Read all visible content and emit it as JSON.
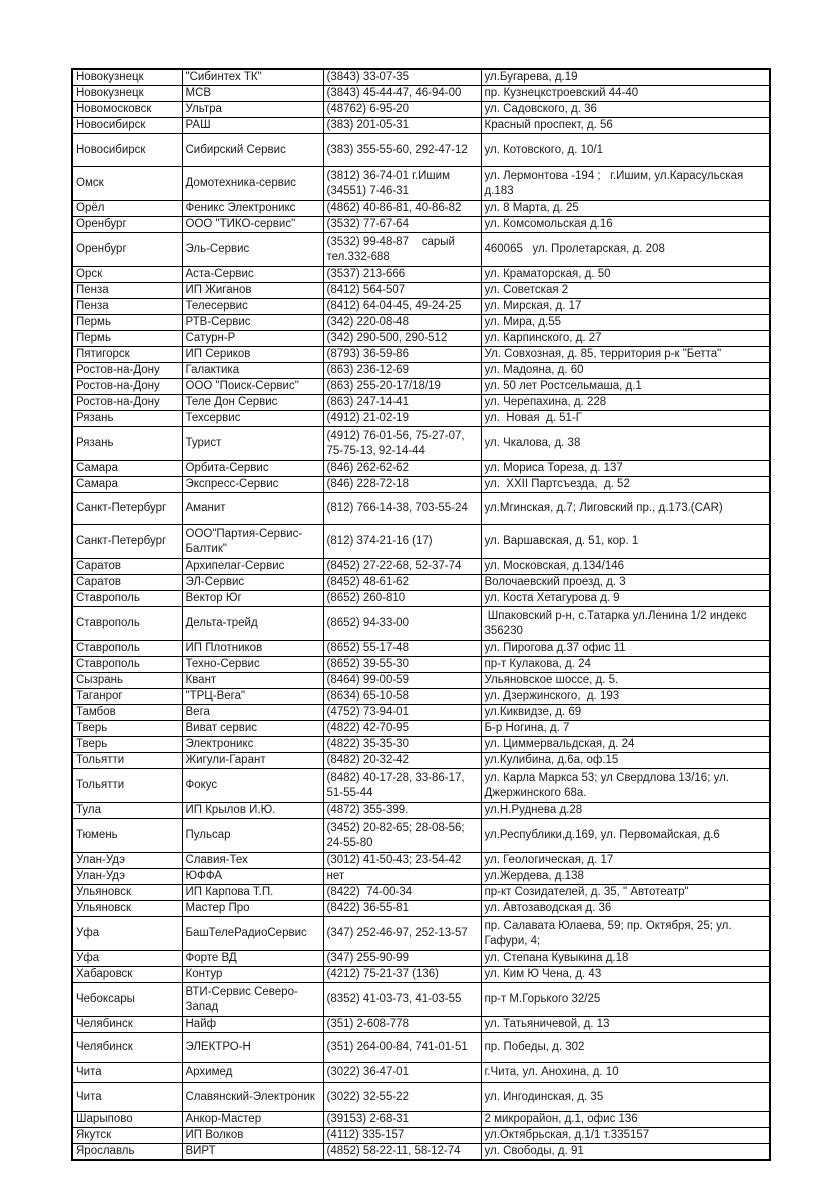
{
  "document": {
    "type": "service-centers-table-page",
    "table": {
      "columns": [
        "city",
        "name",
        "phone",
        "address"
      ],
      "rows": [
        {
          "city": "Новокузнецк",
          "name": "\"Сибинтех ТК\"",
          "phone": "(3843) 33-07-35",
          "address": "ул.Бугарева, д.19"
        },
        {
          "city": "Новокузнецк",
          "name": "МСВ",
          "phone": "(3843) 45-44-47, 46-94-00",
          "address": "пр. Кузнецкстроевский 44-40"
        },
        {
          "city": "Новомосковск",
          "name": "Ультра",
          "phone": "(48762) 6-95-20",
          "address": "ул. Садовского, д. 36"
        },
        {
          "city": "Новосибирск",
          "name": "РАШ",
          "phone": "(383) 201-05-31",
          "address": "Красный проспект, д. 56"
        },
        {
          "city": "Новосибирск",
          "name": "Сибирский Сервис",
          "phone": "(383) 355-55-60, 292-47-12",
          "address": "ул. Котовского, д. 10/1"
        },
        {
          "city": "Омск",
          "name": "Домотехника-сервис",
          "phone": "(3812) 36-74-01 г.Ишим\n(34551) 7-46-31",
          "address": "ул. Лермонтова -194 ;   г.Ишим, ул.Карасульская\nд.183"
        },
        {
          "city": "Орёл",
          "name": "Феникс Электроникс",
          "phone": "(4862) 40-86-81, 40-86-82",
          "address": "ул. 8 Марта, д. 25"
        },
        {
          "city": "Оренбург",
          "name": "ООО \"ТИКО-сервис\"",
          "phone": "(3532) 77-67-64",
          "address": "ул. Комсомольская д.16"
        },
        {
          "city": "Оренбург",
          "name": "Эль-Сервис",
          "phone": "(3532) 99-48-87    сарый\nтел.332-688",
          "address": "460065   ул. Пролетарская, д. 208"
        },
        {
          "city": "Орск",
          "name": "Аста-Сервис",
          "phone": "(3537) 213-666",
          "address": "ул. Краматорская, д. 50"
        },
        {
          "city": "Пенза",
          "name": "ИП Жиганов",
          "phone": "(8412) 564-507",
          "address": "ул. Советская 2"
        },
        {
          "city": "Пенза",
          "name": "Телесервис",
          "phone": "(8412) 64-04-45, 49-24-25",
          "address": "ул. Мирская, д. 17"
        },
        {
          "city": "Пермь",
          "name": "РТВ-Сервис",
          "phone": "(342) 220-08-48",
          "address": "ул. Мира, д.55"
        },
        {
          "city": "Пермь",
          "name": "Сатурн-Р",
          "phone": "(342) 290-500, 290-512",
          "address": "ул. Карпинского, д. 27"
        },
        {
          "city": "Пятигорск",
          "name": "ИП Сериков",
          "phone": "(8793) 36-59-86",
          "address": "Ул. Совхозная, д. 85, территория р-к \"Бетта\""
        },
        {
          "city": "Ростов-на-Дону",
          "name": "Галактика",
          "phone": "(863) 236-12-69",
          "address": "ул. Мадояна, д. 60"
        },
        {
          "city": "Ростов-на-Дону",
          "name": "ООО \"Поиск-Сервис\"",
          "phone": "(863) 255-20-17/18/19",
          "address": "ул. 50 лет Ростсельмаша, д.1"
        },
        {
          "city": "Ростов-на-Дону",
          "name": "Теле Дон Сервис",
          "phone": "(863) 247-14-41",
          "address": "ул. Черепахина, д. 228"
        },
        {
          "city": "Рязань",
          "name": "Техсервис",
          "phone": "(4912) 21-02-19",
          "address": "ул.  Новая  д. 51-Г"
        },
        {
          "city": "Рязань",
          "name": "Турист",
          "phone": "(4912) 76-01-56, 75-27-07,\n75-75-13, 92-14-44",
          "address": "ул. Чкалова, д. 38"
        },
        {
          "city": "Самара",
          "name": "Орбита-Сервис",
          "phone": "(846) 262-62-62",
          "address": "ул. Мориса Тореза, д. 137"
        },
        {
          "city": "Самара",
          "name": "Экспресс-Сервис",
          "phone": "(846) 228-72-18",
          "address": "ул.  XXII Партсъезда,  д. 52"
        },
        {
          "city": "Санкт-Петербург",
          "name": "Аманит",
          "phone": "(812) 766-14-38, 703-55-24",
          "address": "ул.Мгинская, д.7; Лиговский пр., д.173.(CAR)"
        },
        {
          "city": "Санкт-Петербург",
          "name": "ООО\"Партия-Сервис-\nБалтик\"",
          "phone": "(812) 374-21-16 (17)",
          "address": "ул. Варшавская, д. 51, кор. 1"
        },
        {
          "city": "Саратов",
          "name": "Архипелаг-Сервис",
          "phone": "(8452) 27-22-68, 52-37-74",
          "address": "ул. Московская, д.134/146"
        },
        {
          "city": "Саратов",
          "name": "ЭЛ-Сервис",
          "phone": "(8452) 48-61-62",
          "address": "Волочаевский проезд, д. 3"
        },
        {
          "city": "Ставрополь",
          "name": "Вектор Юг",
          "phone": "(8652) 260-810",
          "address": "ул. Коста Хетагурова д. 9"
        },
        {
          "city": "Ставрополь",
          "name": "Дельта-трейд",
          "phone": "(8652) 94-33-00",
          "address": " Шпаковский р-н, с.Татарка ул.Ленина 1/2 индекс\n356230"
        },
        {
          "city": "Ставрополь",
          "name": "ИП Плотников",
          "phone": "(8652) 55-17-48",
          "address": "ул. Пирогова д.37 офис 11"
        },
        {
          "city": "Ставрополь",
          "name": "Техно-Сервис",
          "phone": "(8652) 39-55-30",
          "address": "пр-т Кулакова, д. 24"
        },
        {
          "city": "Сызрань",
          "name": "Квант",
          "phone": "(8464) 99-00-59",
          "address": "Ульяновское шоссе, д. 5."
        },
        {
          "city": "Таганрог",
          "name": "\"ТРЦ-Вега\"",
          "phone": "(8634) 65-10-58",
          "address": "ул. Дзержинского,  д. 193"
        },
        {
          "city": "Тамбов",
          "name": "Вега",
          "phone": "(4752) 73-94-01",
          "address": "ул.Киквидзе, д. 69"
        },
        {
          "city": "Тверь",
          "name": "Виват сервис",
          "phone": "(4822) 42-70-95",
          "address": "Б-р Ногина, д. 7"
        },
        {
          "city": "Тверь",
          "name": "Электроникс",
          "phone": "(4822) 35-35-30",
          "address": "ул. Циммервальдская, д. 24"
        },
        {
          "city": "Тольятти",
          "name": "Жигули-Гарант",
          "phone": "(8482) 20-32-42",
          "address": "ул.Кулибина, д.6а, оф.15"
        },
        {
          "city": "Тольятти",
          "name": "Фокус",
          "phone": "(8482) 40-17-28, 33-86-17,\n51-55-44",
          "address": "ул. Карла Маркса 53; ул Свердлова 13/16; ул.\nДжержинского 68а."
        },
        {
          "city": "Тула",
          "name": "ИП Крылов И.Ю.",
          "phone": "(4872) 355-399.",
          "address": "ул.Н.Руднева д.28"
        },
        {
          "city": "Тюмень",
          "name": "Пульсар",
          "phone": "(3452) 20-82-65; 28-08-56;\n24-55-80",
          "address": "ул.Республики,д.169, ул. Первомайская, д.6"
        },
        {
          "city": "Улан-Удэ",
          "name": "Славия-Тех",
          "phone": "(3012) 41-50-43; 23-54-42",
          "address": "ул. Геологическая, д. 17"
        },
        {
          "city": "Улан-Удэ",
          "name": "ЮФФА",
          "phone": "нет",
          "address": "ул.Жердева, д.138"
        },
        {
          "city": "Ульяновск",
          "name": "ИП Карпова Т.П.",
          "phone": "(8422)  74-00-34",
          "address": "пр-кт Созидателей, д. 35, \" Автотеатр\""
        },
        {
          "city": "Ульяновск",
          "name": "Мастер Про",
          "phone": "(8422) 36-55-81",
          "address": "ул. Автозаводская д. 36"
        },
        {
          "city": "Уфа",
          "name": "БашТелеРадиоСервис",
          "phone": "(347) 252-46-97, 252-13-57",
          "address": "пр. Салавата Юлаева, 59; пр. Октября, 25; ул.\nГафури, 4;"
        },
        {
          "city": "Уфа",
          "name": "Форте ВД",
          "phone": "(347) 255-90-99",
          "address": "ул. Степана Кувыкина д.18"
        },
        {
          "city": "Хабаровск",
          "name": "Контур",
          "phone": "(4212) 75-21-37 (136)",
          "address": "ул. Ким Ю Чена, д. 43"
        },
        {
          "city": "Чебоксары",
          "name": "ВТИ-Сервис Северо-\nЗапад",
          "phone": "(8352) 41-03-73, 41-03-55",
          "address": "пр-т М.Горького 32/25"
        },
        {
          "city": "Челябинск",
          "name": "Найф",
          "phone": "(351) 2-608-778",
          "address": "ул. Татьяничевой, д. 13"
        },
        {
          "city": "Челябинск",
          "name": "ЭЛЕКТРО-Н",
          "phone": "(351) 264-00-84, 741-01-51",
          "address": "пр. Победы, д. 302"
        },
        {
          "city": "Чита",
          "name": "Архимед",
          "phone": "(3022) 36-47-01",
          "address": "г.Чита, ул. Анохина, д. 10"
        },
        {
          "city": "Чита",
          "name": "Славянский-Электроник",
          "phone": "(3022) 32-55-22",
          "address": "ул. Ингодинская, д. 35"
        },
        {
          "city": "Шарыпово",
          "name": "Анкор-Мастер",
          "phone": "(39153) 2-68-31",
          "address": "2 микрорайон, д.1, офис 136"
        },
        {
          "city": "Якутск",
          "name": "ИП Волков",
          "phone": "(4112) 335-157",
          "address": "ул.Октябрьская, д.1/1 т.335157"
        },
        {
          "city": "Ярославль",
          "name": "ВИРТ",
          "phone": "(4852) 58-22-11, 58-12-74",
          "address": "ул. Свободы, д. 91"
        }
      ]
    }
  }
}
